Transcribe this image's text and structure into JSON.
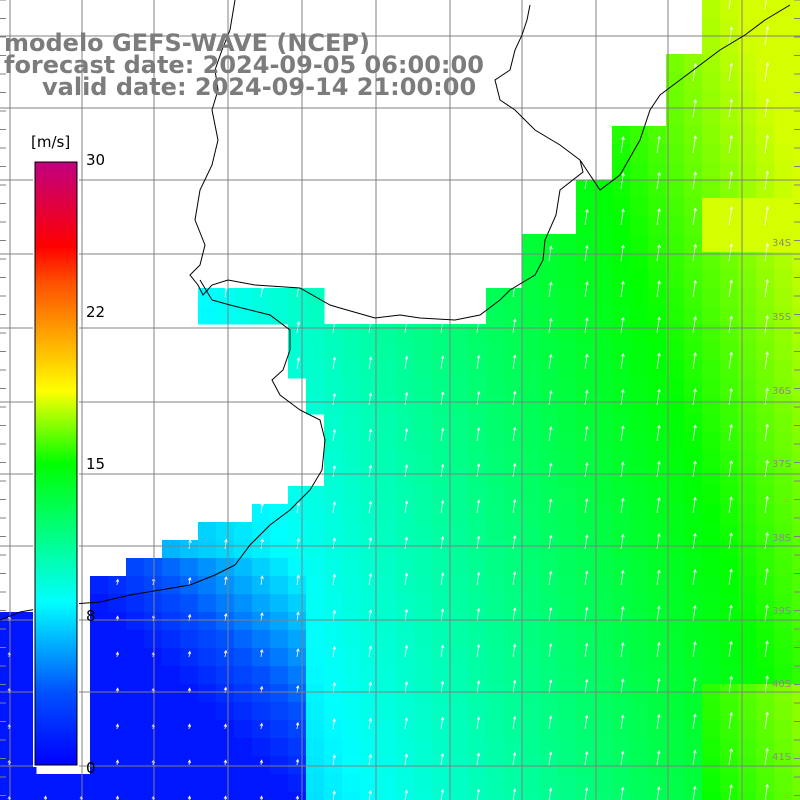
{
  "title": {
    "line1": "modelo GEFS-WAVE (NCEP)",
    "line2": "forecast date: 2024-09-05 06:00:00",
    "line3": "valid date: 2024-09-14 21:00:00"
  },
  "colorbar": {
    "unit": "[m/s]",
    "ticks": [
      "30",
      "22",
      "15",
      "8",
      "0"
    ],
    "tick_values": [
      30,
      22,
      15,
      8,
      0
    ],
    "min": 0,
    "max": 30
  },
  "lat_labels": [
    "34S",
    "35S",
    "36S",
    "37S",
    "38S",
    "39S",
    "40S",
    "41S"
  ],
  "colors": {
    "land": "#ffffff",
    "grid": "#808080",
    "coast": "#000000",
    "arrow": "#ffffff",
    "title": "#7c7c7c"
  }
}
